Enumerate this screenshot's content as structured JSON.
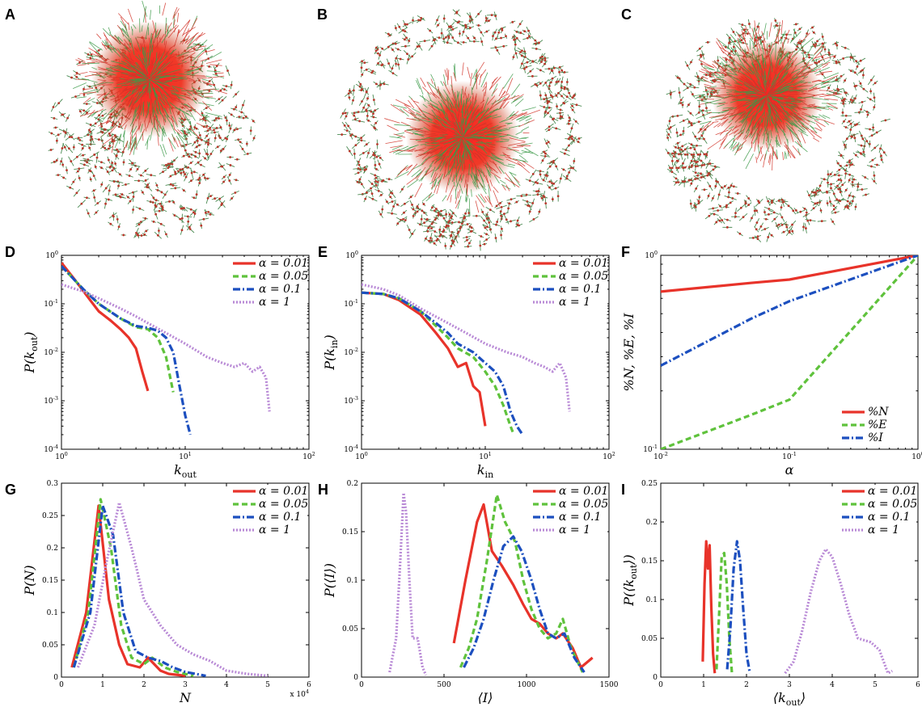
{
  "figure": {
    "network_panels": [
      {
        "letter": "A"
      },
      {
        "letter": "B"
      },
      {
        "letter": "C"
      }
    ]
  },
  "chart_data": [
    {
      "panel": "D",
      "type": "line",
      "xscale": "log",
      "yscale": "log",
      "xlabel": "k_out",
      "ylabel": "P(k_out)",
      "xlim": [
        1,
        100
      ],
      "ylim": [
        0.0001,
        1
      ],
      "x_ticklabels": [
        "10^0",
        "10^1",
        "10^2"
      ],
      "y_ticklabels": [
        "10^-4",
        "10^-3",
        "10^-2",
        "10^-1",
        "10^0"
      ],
      "legend": "top-right",
      "series": [
        {
          "name": "α = 0.01",
          "color": "#e8332a",
          "dash": "solid",
          "x": [
            1,
            1.3,
            1.7,
            2,
            2.5,
            3,
            3.5,
            4,
            4.5,
            5
          ],
          "y": [
            0.7,
            0.3,
            0.12,
            0.07,
            0.045,
            0.03,
            0.02,
            0.012,
            0.004,
            0.0016
          ]
        },
        {
          "name": "α = 0.05",
          "color": "#5fc23c",
          "dash": "dashed",
          "x": [
            1,
            1.5,
            2,
            3,
            4,
            5,
            6,
            7,
            8
          ],
          "y": [
            0.6,
            0.2,
            0.1,
            0.05,
            0.033,
            0.03,
            0.02,
            0.008,
            0.0015
          ]
        },
        {
          "name": "α = 0.1",
          "color": "#1c4fbf",
          "dash": "dashdot",
          "x": [
            1,
            1.5,
            2,
            3,
            4,
            5,
            6,
            7,
            8,
            9,
            10,
            11
          ],
          "y": [
            0.6,
            0.2,
            0.1,
            0.05,
            0.035,
            0.032,
            0.028,
            0.02,
            0.01,
            0.002,
            0.0005,
            0.0002
          ]
        },
        {
          "name": "α = 1",
          "color": "#b98ad6",
          "dash": "dotted",
          "x": [
            1,
            1.5,
            2,
            3,
            4,
            5,
            7,
            10,
            15,
            20,
            25,
            30,
            35,
            40,
            45,
            48
          ],
          "y": [
            0.25,
            0.18,
            0.13,
            0.08,
            0.055,
            0.04,
            0.025,
            0.015,
            0.008,
            0.006,
            0.005,
            0.006,
            0.004,
            0.005,
            0.003,
            0.0006
          ]
        }
      ]
    },
    {
      "panel": "E",
      "type": "line",
      "xscale": "log",
      "yscale": "log",
      "xlabel": "k_in",
      "ylabel": "P(k_in)",
      "xlim": [
        1,
        100
      ],
      "ylim": [
        0.0001,
        1
      ],
      "x_ticklabels": [
        "10^0",
        "10^1",
        "10^2"
      ],
      "y_ticklabels": [
        "10^-4",
        "10^-3",
        "10^-2",
        "10^-1",
        "10^0"
      ],
      "legend": "top-right",
      "series": [
        {
          "name": "α = 0.01",
          "color": "#e8332a",
          "dash": "solid",
          "x": [
            1,
            1.5,
            2,
            3,
            4,
            5,
            6,
            7,
            8,
            9,
            10
          ],
          "y": [
            0.17,
            0.16,
            0.12,
            0.06,
            0.025,
            0.012,
            0.005,
            0.006,
            0.002,
            0.0015,
            0.0003
          ]
        },
        {
          "name": "α = 0.05",
          "color": "#5fc23c",
          "dash": "dashed",
          "x": [
            1,
            1.5,
            2,
            3,
            4,
            5,
            6,
            8,
            10,
            12,
            14,
            16,
            17
          ],
          "y": [
            0.17,
            0.16,
            0.13,
            0.07,
            0.035,
            0.02,
            0.012,
            0.008,
            0.004,
            0.002,
            0.0008,
            0.0003,
            0.0002
          ]
        },
        {
          "name": "α = 0.1",
          "color": "#1c4fbf",
          "dash": "dashdot",
          "x": [
            1,
            1.5,
            2,
            3,
            4,
            5,
            6,
            8,
            10,
            12,
            14,
            16,
            18,
            20
          ],
          "y": [
            0.17,
            0.16,
            0.13,
            0.07,
            0.04,
            0.025,
            0.015,
            0.01,
            0.006,
            0.004,
            0.002,
            0.0006,
            0.0003,
            0.0002
          ]
        },
        {
          "name": "α = 1",
          "color": "#b98ad6",
          "dash": "dotted",
          "x": [
            1,
            1.5,
            2,
            3,
            5,
            7,
            10,
            15,
            20,
            25,
            30,
            35,
            40,
            45,
            48
          ],
          "y": [
            0.25,
            0.2,
            0.15,
            0.08,
            0.04,
            0.025,
            0.015,
            0.01,
            0.008,
            0.006,
            0.005,
            0.004,
            0.006,
            0.003,
            0.0006
          ]
        }
      ]
    },
    {
      "panel": "F",
      "type": "line",
      "xscale": "log",
      "yscale": "log",
      "xlabel": "α",
      "ylabel": "%N, %E, %I",
      "xlim": [
        0.01,
        1
      ],
      "ylim": [
        0.1,
        1
      ],
      "x_ticklabels": [
        "10^-2",
        "10^-1",
        "10^0"
      ],
      "y_ticklabels": [
        "10^-1",
        "10^0"
      ],
      "legend": "bottom-right",
      "series": [
        {
          "name": "%N",
          "color": "#e8332a",
          "dash": "solid",
          "x": [
            0.01,
            0.05,
            0.1,
            1
          ],
          "y": [
            0.65,
            0.72,
            0.75,
            1
          ]
        },
        {
          "name": "%E",
          "color": "#5fc23c",
          "dash": "dashed",
          "x": [
            0.01,
            0.05,
            0.1,
            1
          ],
          "y": [
            0.1,
            0.15,
            0.18,
            1
          ]
        },
        {
          "name": "%I",
          "color": "#1c4fbf",
          "dash": "dashdot",
          "x": [
            0.01,
            0.05,
            0.1,
            1
          ],
          "y": [
            0.27,
            0.47,
            0.58,
            1
          ]
        }
      ]
    },
    {
      "panel": "G",
      "type": "line",
      "xscale": "linear",
      "yscale": "linear",
      "xlabel": "N",
      "ylabel": "P(N)",
      "x_multiplier": "x 10^4",
      "xlim": [
        0,
        6
      ],
      "ylim": [
        0,
        0.3
      ],
      "x_ticklabels": [
        "0",
        "1",
        "2",
        "3",
        "4",
        "5",
        "6"
      ],
      "y_ticklabels": [
        "0",
        "0.05",
        "0.1",
        "0.15",
        "0.2",
        "0.25",
        "0.3"
      ],
      "legend": "top-right",
      "series": [
        {
          "name": "α = 0.01",
          "color": "#e8332a",
          "dash": "solid",
          "x": [
            0.25,
            0.6,
            0.9,
            1.15,
            1.4,
            1.6,
            1.9,
            2.1,
            2.4,
            2.6,
            3.0
          ],
          "y": [
            0.015,
            0.1,
            0.265,
            0.12,
            0.05,
            0.02,
            0.015,
            0.03,
            0.01,
            0.005,
            0.002
          ]
        },
        {
          "name": "α = 0.05",
          "color": "#5fc23c",
          "dash": "dashed",
          "x": [
            0.3,
            0.65,
            0.95,
            1.2,
            1.45,
            1.7,
            2.0,
            2.2,
            2.5,
            2.8,
            3.2
          ],
          "y": [
            0.015,
            0.1,
            0.275,
            0.2,
            0.08,
            0.03,
            0.02,
            0.03,
            0.015,
            0.008,
            0.002
          ]
        },
        {
          "name": "α = 0.1",
          "color": "#1c4fbf",
          "dash": "dashdot",
          "x": [
            0.3,
            0.7,
            1.0,
            1.25,
            1.5,
            1.8,
            2.1,
            2.4,
            2.7,
            3.0,
            3.5
          ],
          "y": [
            0.015,
            0.1,
            0.265,
            0.22,
            0.1,
            0.04,
            0.03,
            0.025,
            0.015,
            0.008,
            0.002
          ]
        },
        {
          "name": "α = 1",
          "color": "#b98ad6",
          "dash": "dotted",
          "x": [
            0.4,
            0.8,
            1.1,
            1.4,
            1.7,
            2.0,
            2.4,
            2.8,
            3.2,
            3.6,
            4.0,
            4.5,
            5.0
          ],
          "y": [
            0.015,
            0.08,
            0.18,
            0.27,
            0.2,
            0.12,
            0.08,
            0.05,
            0.035,
            0.025,
            0.01,
            0.005,
            0.002
          ]
        }
      ]
    },
    {
      "panel": "H",
      "type": "line",
      "xscale": "linear",
      "yscale": "linear",
      "xlabel": "⟨I⟩",
      "ylabel": "P(⟨I⟩)",
      "xlim": [
        0,
        1500
      ],
      "ylim": [
        0,
        0.2
      ],
      "x_ticklabels": [
        "0",
        "500",
        "1000",
        "1500"
      ],
      "y_ticklabels": [
        "0",
        "0.05",
        "0.1",
        "0.15",
        "0.2"
      ],
      "legend": "top-right",
      "series": [
        {
          "name": "α = 0.01",
          "color": "#e8332a",
          "dash": "solid",
          "x": [
            560,
            630,
            700,
            740,
            790,
            850,
            920,
            980,
            1030,
            1080,
            1130,
            1180,
            1220,
            1280,
            1330,
            1400
          ],
          "y": [
            0.035,
            0.1,
            0.16,
            0.178,
            0.13,
            0.115,
            0.095,
            0.075,
            0.06,
            0.055,
            0.045,
            0.04,
            0.045,
            0.03,
            0.01,
            0.02
          ]
        },
        {
          "name": "α = 0.05",
          "color": "#5fc23c",
          "dash": "dashed",
          "x": [
            600,
            650,
            700,
            760,
            820,
            870,
            930,
            980,
            1030,
            1080,
            1130,
            1180,
            1220,
            1270,
            1340
          ],
          "y": [
            0.01,
            0.03,
            0.06,
            0.12,
            0.188,
            0.16,
            0.14,
            0.1,
            0.07,
            0.05,
            0.04,
            0.045,
            0.06,
            0.03,
            0.005
          ]
        },
        {
          "name": "α = 0.1",
          "color": "#1c4fbf",
          "dash": "dashdot",
          "x": [
            620,
            680,
            740,
            800,
            860,
            920,
            970,
            1030,
            1080,
            1130,
            1180,
            1230,
            1290,
            1350
          ],
          "y": [
            0.01,
            0.03,
            0.06,
            0.1,
            0.135,
            0.145,
            0.13,
            0.1,
            0.07,
            0.045,
            0.04,
            0.045,
            0.02,
            0.005
          ]
        },
        {
          "name": "α = 1",
          "color": "#b98ad6",
          "dash": "dotted",
          "x": [
            170,
            210,
            235,
            255,
            270,
            290,
            310,
            340,
            370,
            390
          ],
          "y": [
            0.005,
            0.04,
            0.12,
            0.19,
            0.17,
            0.1,
            0.04,
            0.04,
            0.01,
            0.002
          ]
        }
      ]
    },
    {
      "panel": "I",
      "type": "line",
      "xscale": "linear",
      "yscale": "linear",
      "xlabel": "⟨k_out⟩",
      "ylabel": "P(⟨k_out⟩)",
      "xlim": [
        0,
        6
      ],
      "ylim": [
        0,
        0.25
      ],
      "x_ticklabels": [
        "0",
        "1",
        "2",
        "3",
        "4",
        "5",
        "6"
      ],
      "y_ticklabels": [
        "0",
        "0.05",
        "0.1",
        "0.15",
        "0.2",
        "0.25"
      ],
      "legend": "top-right",
      "series": [
        {
          "name": "α = 0.01",
          "color": "#e8332a",
          "dash": "solid",
          "x": [
            0.98,
            1.02,
            1.06,
            1.1,
            1.14,
            1.18,
            1.22,
            1.26
          ],
          "y": [
            0.02,
            0.12,
            0.175,
            0.14,
            0.17,
            0.09,
            0.03,
            0.005
          ]
        },
        {
          "name": "α = 0.05",
          "color": "#5fc23c",
          "dash": "dashed",
          "x": [
            1.3,
            1.36,
            1.42,
            1.48,
            1.54,
            1.6,
            1.66
          ],
          "y": [
            0.01,
            0.08,
            0.155,
            0.16,
            0.12,
            0.05,
            0.005
          ]
        },
        {
          "name": "α = 0.1",
          "color": "#1c4fbf",
          "dash": "dashdot",
          "x": [
            1.55,
            1.62,
            1.7,
            1.78,
            1.85,
            1.92,
            2.0,
            2.08
          ],
          "y": [
            0.01,
            0.06,
            0.14,
            0.175,
            0.15,
            0.09,
            0.03,
            0.005
          ]
        },
        {
          "name": "α = 1",
          "color": "#b98ad6",
          "dash": "dotted",
          "x": [
            2.9,
            3.1,
            3.3,
            3.5,
            3.7,
            3.85,
            4.0,
            4.2,
            4.4,
            4.6,
            4.9,
            5.1,
            5.3,
            5.4
          ],
          "y": [
            0.005,
            0.02,
            0.06,
            0.11,
            0.15,
            0.165,
            0.155,
            0.12,
            0.08,
            0.05,
            0.045,
            0.035,
            0.005,
            0.008
          ]
        }
      ]
    }
  ]
}
